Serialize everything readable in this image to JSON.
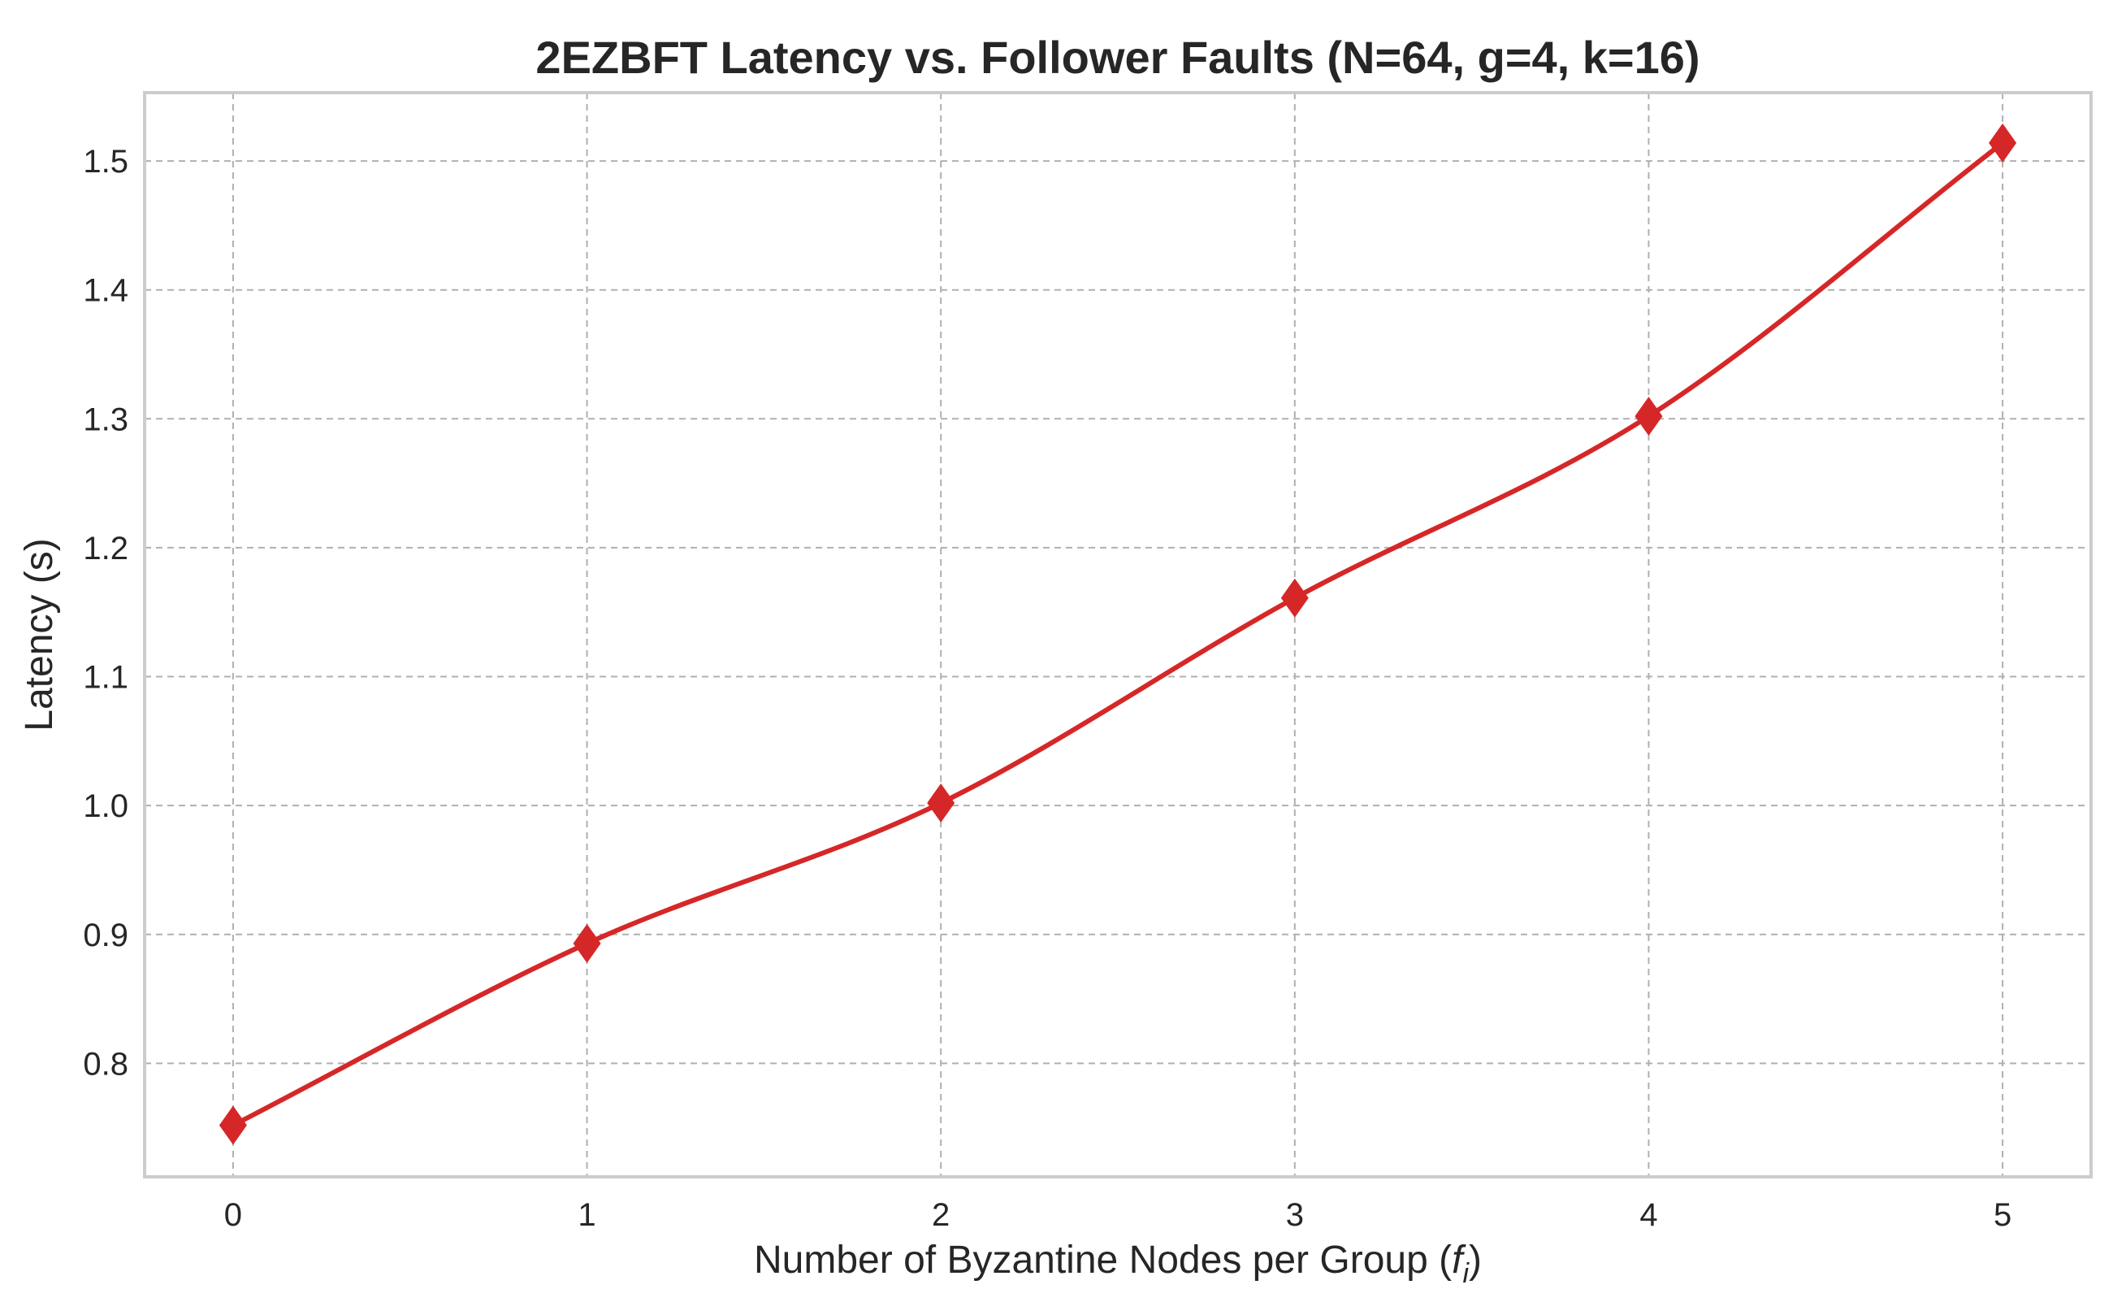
{
  "chart_data": {
    "type": "line",
    "title": "2EZBFT Latency vs. Follower Faults (N=64, g=4, k=16)",
    "xlabel_main": "Number of Byzantine Nodes per Group (",
    "xlabel_symbol": "f",
    "xlabel_subscript": "i",
    "xlabel_close": ")",
    "ylabel": "Latency (s)",
    "x": [
      0,
      1,
      2,
      3,
      4,
      5
    ],
    "series": [
      {
        "values": [
          0.752,
          0.893,
          1.002,
          1.161,
          1.302,
          1.514
        ],
        "color": "#d62728",
        "marker": "diamond"
      }
    ],
    "xticks": [
      "0",
      "1",
      "2",
      "3",
      "4",
      "5"
    ],
    "yticks": [
      "0.8",
      "0.9",
      "1.0",
      "1.1",
      "1.2",
      "1.3",
      "1.4",
      "1.5"
    ],
    "ytick_values": [
      0.8,
      0.9,
      1.0,
      1.1,
      1.2,
      1.3,
      1.4,
      1.5
    ],
    "xlim": [
      -0.25,
      5.25
    ],
    "ylim": [
      0.712,
      1.553
    ],
    "grid": true,
    "legend": "none"
  }
}
